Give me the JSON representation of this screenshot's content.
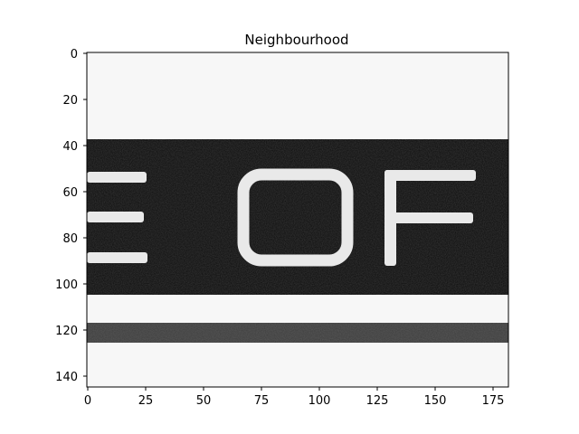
{
  "figure": {
    "title": "Neighbourhood"
  },
  "axes": {
    "x_ticks": [
      "0",
      "25",
      "50",
      "75",
      "100",
      "125",
      "150",
      "175"
    ],
    "y_ticks": [
      "0",
      "20",
      "40",
      "60",
      "80",
      "100",
      "120",
      "140"
    ]
  },
  "image": {
    "letters": [
      "E",
      "O",
      "F"
    ]
  }
}
